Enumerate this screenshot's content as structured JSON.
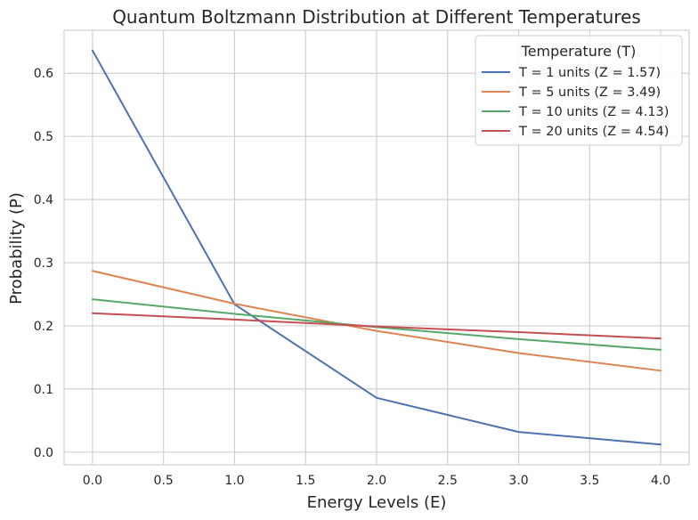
{
  "chart_data": {
    "type": "line",
    "title": "Quantum Boltzmann Distribution at Different Temperatures",
    "xlabel": "Energy Levels (E)",
    "ylabel": "Probability (P)",
    "xlim": [
      -0.2,
      4.2
    ],
    "ylim": [
      -0.02,
      0.668
    ],
    "xticks": [
      0.0,
      0.5,
      1.0,
      1.5,
      2.0,
      2.5,
      3.0,
      3.5,
      4.0
    ],
    "xtick_labels": [
      "0.0",
      "0.5",
      "1.0",
      "1.5",
      "2.0",
      "2.5",
      "3.0",
      "3.5",
      "4.0"
    ],
    "yticks": [
      0.0,
      0.1,
      0.2,
      0.3,
      0.4,
      0.5,
      0.6
    ],
    "ytick_labels": [
      "0.0",
      "0.1",
      "0.2",
      "0.3",
      "0.4",
      "0.5",
      "0.6"
    ],
    "grid": true,
    "legend": {
      "title": "Temperature (T)",
      "placement": "top-right"
    },
    "x": [
      0,
      1,
      2,
      3,
      4
    ],
    "series": [
      {
        "name": "T = 1 units (Z = 1.57)",
        "color": "#4c72b0",
        "values": [
          0.636,
          0.234,
          0.086,
          0.032,
          0.012
        ]
      },
      {
        "name": "T = 5 units (Z = 3.49)",
        "color": "#dd8452",
        "values": [
          0.287,
          0.235,
          0.192,
          0.157,
          0.129
        ]
      },
      {
        "name": "T = 10 units (Z = 4.13)",
        "color": "#55a868",
        "values": [
          0.242,
          0.219,
          0.198,
          0.179,
          0.162
        ]
      },
      {
        "name": "T = 20 units (Z = 4.54)",
        "color": "#c44e52",
        "values": [
          0.22,
          0.21,
          0.199,
          0.19,
          0.18
        ]
      }
    ]
  }
}
